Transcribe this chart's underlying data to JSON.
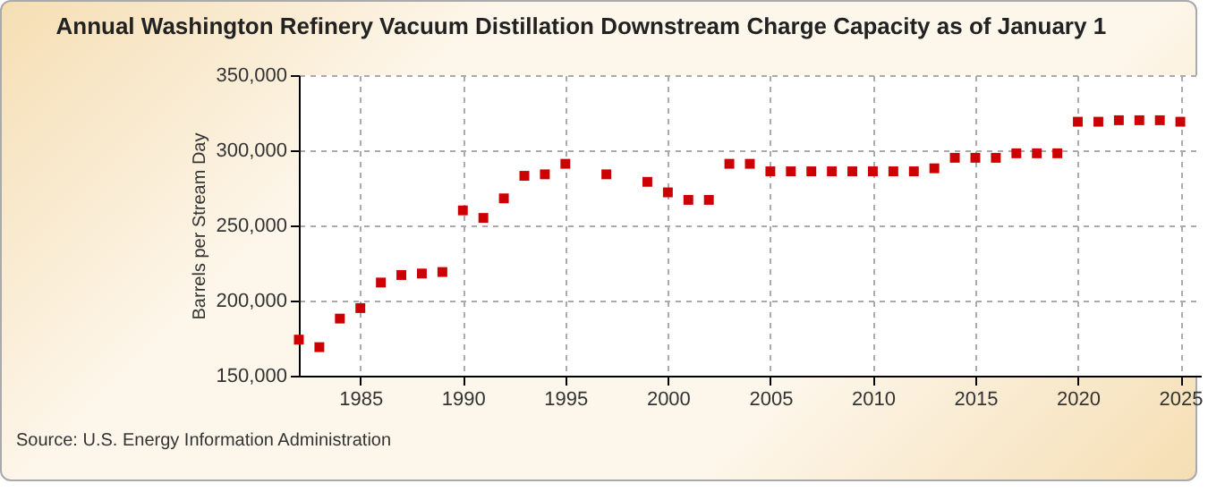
{
  "chart_data": {
    "type": "scatter",
    "title": "Annual Washington Refinery Vacuum Distillation Downstream Charge Capacity as of January 1",
    "ylabel": "Barrels per Stream Day",
    "x": [
      1982,
      1983,
      1984,
      1985,
      1986,
      1987,
      1988,
      1989,
      1990,
      1991,
      1992,
      1993,
      1994,
      1995,
      1997,
      1999,
      2000,
      2001,
      2002,
      2003,
      2004,
      2005,
      2006,
      2007,
      2008,
      2009,
      2010,
      2011,
      2012,
      2013,
      2014,
      2015,
      2016,
      2017,
      2018,
      2019,
      2020,
      2021,
      2022,
      2023,
      2024,
      2025
    ],
    "series": [
      {
        "color": "#cc0000",
        "values": [
          174000,
          169000,
          188000,
          195000,
          212000,
          217000,
          218000,
          219000,
          260000,
          255000,
          268000,
          283000,
          284000,
          291000,
          284000,
          279000,
          272000,
          267000,
          267000,
          291000,
          291000,
          286000,
          286000,
          286000,
          286000,
          286000,
          286000,
          286000,
          286000,
          288000,
          295000,
          295000,
          295000,
          298000,
          298000,
          298000,
          319000,
          319000,
          320000,
          320000,
          320000,
          319000
        ]
      }
    ],
    "xlim": [
      1982,
      2026
    ],
    "xticks": [
      1985,
      1990,
      1995,
      2000,
      2005,
      2010,
      2015,
      2020,
      2025
    ],
    "ylim": [
      150000,
      350000
    ],
    "yticks": [
      {
        "value": 150000,
        "label": "150,000"
      },
      {
        "value": 200000,
        "label": "200,000"
      },
      {
        "value": 250000,
        "label": "250,000"
      },
      {
        "value": 300000,
        "label": "300,000"
      },
      {
        "value": 350000,
        "label": "350,000"
      }
    ],
    "grid": true,
    "marker": "square",
    "annotations": [
      "Source: U.S. Energy Information Administration"
    ]
  }
}
